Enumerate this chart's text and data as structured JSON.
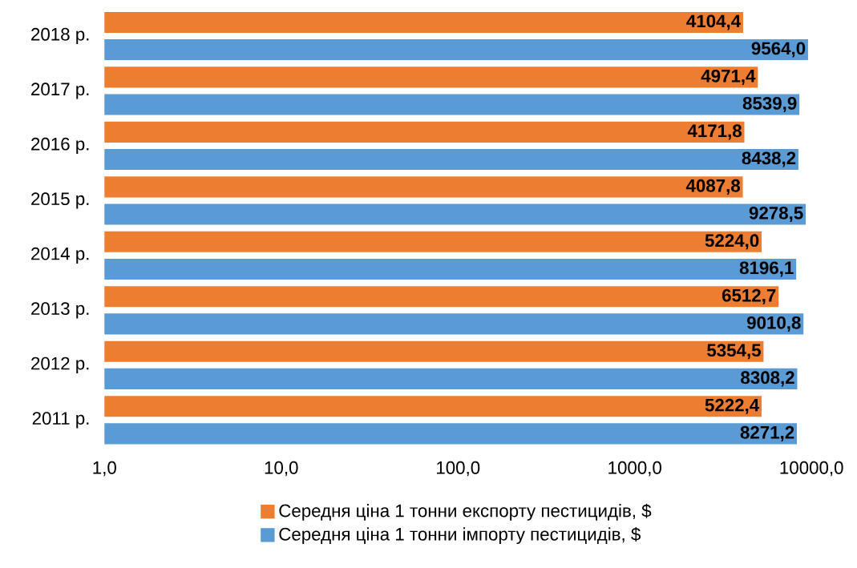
{
  "chart_data": {
    "type": "bar",
    "orientation": "horizontal",
    "log": "x",
    "categories": [
      "2018 р.",
      "2017 р.",
      "2016 р.",
      "2015 р.",
      "2014 р.",
      "2013 р.",
      "2012 р.",
      "2011 р."
    ],
    "series": [
      {
        "name": "Середня ціна 1 тонни експорту пестицидів, $",
        "color": "#ed7d31",
        "values": [
          4104.4,
          4971.4,
          4171.8,
          4087.8,
          5224.0,
          6512.7,
          5354.5,
          5222.4
        ],
        "value_labels": [
          "4104,4",
          "4971,4",
          "4171,8",
          "4087,8",
          "5224,0",
          "6512,7",
          "5354,5",
          "5222,4"
        ]
      },
      {
        "name": "Середня ціна 1 тонни імпорту пестицидів, $",
        "color": "#5b9bd5",
        "values": [
          9564.0,
          8539.9,
          8438.2,
          9278.5,
          8196.1,
          9010.8,
          8308.2,
          8271.2
        ],
        "value_labels": [
          "9564,0",
          "8539,9",
          "8438,2",
          "9278,5",
          "8196,1",
          "9010,8",
          "8308,2",
          "8271,2"
        ]
      }
    ],
    "xlim": [
      1,
      10000
    ],
    "xticks": [
      {
        "value": 1,
        "label": "1,0"
      },
      {
        "value": 10,
        "label": "10,0"
      },
      {
        "value": 100,
        "label": "100,0"
      },
      {
        "value": 1000,
        "label": "1000,0"
      },
      {
        "value": 10000,
        "label": "10000,0"
      }
    ],
    "grid": false,
    "legend": "bottom"
  }
}
